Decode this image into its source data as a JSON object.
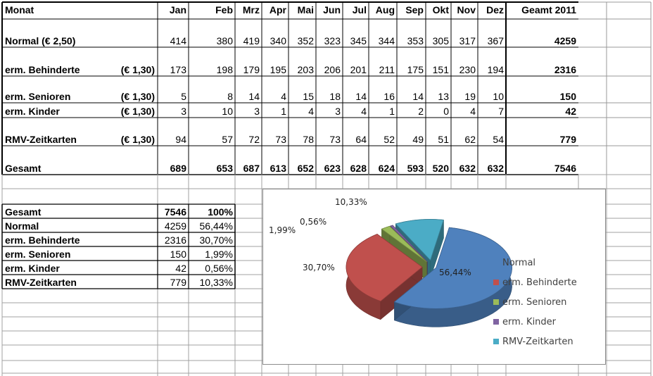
{
  "top_table": {
    "headers": [
      "Monat",
      "Jan",
      "Feb",
      "Mrz",
      "Apr",
      "Mai",
      "Jun",
      "Jul",
      "Aug",
      "Sep",
      "Okt",
      "Nov",
      "Dez",
      "Geamt 2011"
    ],
    "rows": [
      {
        "label": "Normal (€ 2,50)",
        "price": "",
        "values": [
          "414",
          "380",
          "419",
          "340",
          "352",
          "323",
          "345",
          "344",
          "353",
          "305",
          "317",
          "367"
        ],
        "total": "4259",
        "bold_values": false
      },
      {
        "label": "erm. Behinderte",
        "price": "(€ 1,30)",
        "values": [
          "173",
          "198",
          "179",
          "195",
          "203",
          "206",
          "201",
          "211",
          "175",
          "151",
          "230",
          "194"
        ],
        "total": "2316",
        "bold_values": false
      },
      {
        "label": "erm. Senioren",
        "price": "(€ 1,30)",
        "values": [
          "5",
          "8",
          "14",
          "4",
          "15",
          "18",
          "14",
          "16",
          "14",
          "13",
          "19",
          "10"
        ],
        "total": "150",
        "bold_values": false
      },
      {
        "label": "erm. Kinder",
        "price": "(€ 1,30)",
        "values": [
          "3",
          "10",
          "3",
          "1",
          "4",
          "3",
          "4",
          "1",
          "2",
          "0",
          "4",
          "7"
        ],
        "total": "42",
        "bold_values": false
      },
      {
        "label": "RMV-Zeitkarten",
        "price": "(€ 1,30)",
        "values": [
          "94",
          "57",
          "72",
          "73",
          "78",
          "73",
          "64",
          "52",
          "49",
          "51",
          "62",
          "54"
        ],
        "total": "779",
        "bold_values": false
      },
      {
        "label": "Gesamt",
        "price": "",
        "values": [
          "689",
          "653",
          "687",
          "613",
          "652",
          "623",
          "628",
          "624",
          "593",
          "520",
          "632",
          "632"
        ],
        "total": "7546",
        "bold_values": true
      }
    ]
  },
  "summary_table": {
    "header": {
      "label": "Gesamt",
      "count": "7546",
      "percent": "100%"
    },
    "rows": [
      {
        "label": "Normal",
        "count": "4259",
        "percent": "56,44%"
      },
      {
        "label": "erm. Behinderte",
        "count": "2316",
        "percent": "30,70%"
      },
      {
        "label": "erm. Senioren",
        "count": "150",
        "percent": "1,99%"
      },
      {
        "label": "erm. Kinder",
        "count": "42",
        "percent": "0,56%"
      },
      {
        "label": "RMV-Zeitkarten",
        "count": "779",
        "percent": "10,33%"
      }
    ]
  },
  "chart_data": {
    "type": "pie",
    "style": "3d exploded",
    "categories": [
      "Normal",
      "erm. Behinderte",
      "erm. Senioren",
      "erm. Kinder",
      "RMV-Zeitkarten"
    ],
    "values": [
      4259,
      2316,
      150,
      42,
      779
    ],
    "labels": [
      "56,44%",
      "30,70%",
      "1,99%",
      "0,56%",
      "10,33%"
    ],
    "colors": [
      "#4f81bd",
      "#c0504d",
      "#9bbb59",
      "#8064a2",
      "#4bacc6"
    ],
    "legend_position": "right"
  }
}
